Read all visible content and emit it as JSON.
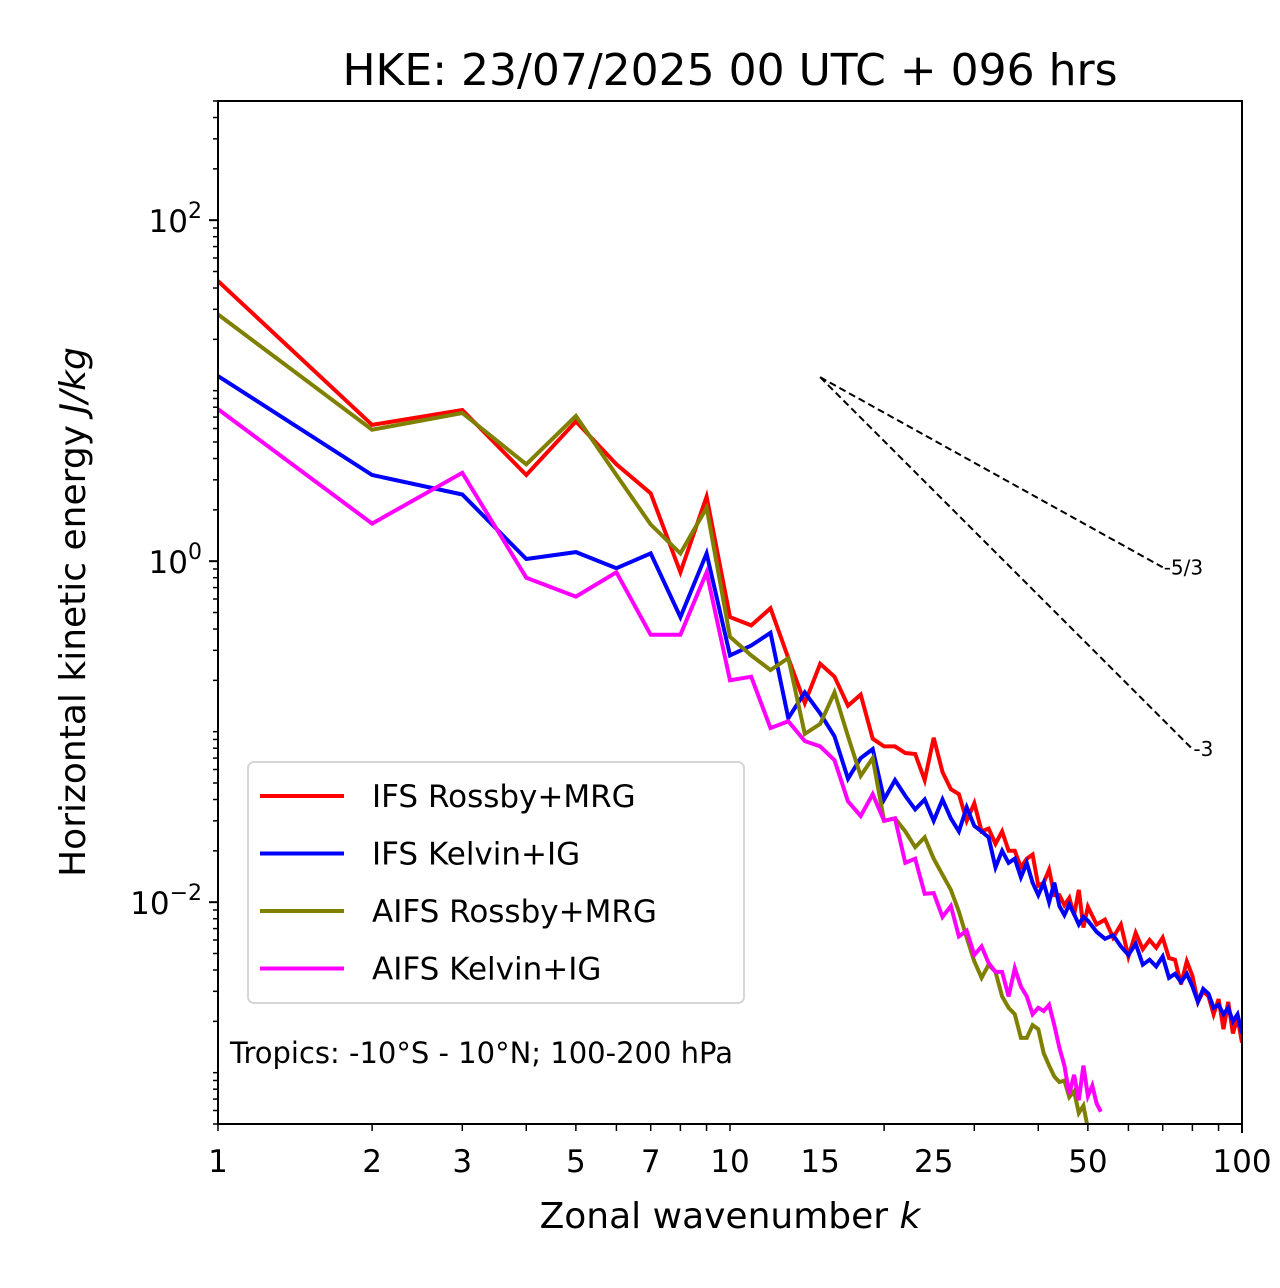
{
  "chart_data": {
    "type": "line",
    "title": "HKE: 23/07/2025 00 UTC + 096 hrs",
    "xlabel": "Zonal wavenumber",
    "xlabel_var": "k",
    "ylabel": "Horizontal kinetic energy",
    "ylabel_units": "J/kg",
    "xscale": "log",
    "yscale": "log",
    "xlim": [
      1,
      100
    ],
    "ylim": [
      0.0005,
      500
    ],
    "x_ticks": [
      1,
      2,
      3,
      5,
      7,
      10,
      15,
      25,
      50,
      100
    ],
    "x_tick_labels": [
      "1",
      "2",
      "3",
      "5",
      "7",
      "10",
      "15",
      "25",
      "50",
      "100"
    ],
    "y_ticks": [
      0.01,
      1,
      100
    ],
    "y_tick_labels": [
      {
        "base": "10",
        "exp": "−2"
      },
      {
        "base": "10",
        "exp": "0"
      },
      {
        "base": "10",
        "exp": "2"
      }
    ],
    "grid": false,
    "legend_position": "lower-left",
    "annotation": "Tropics: -10°S - 10°N; 100-200 hPa",
    "reference_slopes": [
      {
        "label": "-5/3",
        "slope": -1.6667,
        "k_start": 15,
        "k_end": 70,
        "e_start": 12
      },
      {
        "label": "-3",
        "slope": -3,
        "k_start": 15,
        "k_end": 80,
        "e_start": 12
      }
    ],
    "series": [
      {
        "name": "IFS Rossby+MRG",
        "color": "#ff0000",
        "x": [
          1,
          2,
          3,
          4,
          5,
          6,
          7,
          8,
          9,
          10,
          11,
          12,
          13,
          14,
          15,
          16,
          17,
          18,
          19,
          20,
          21,
          22,
          23,
          24,
          25,
          26,
          27,
          28,
          29,
          30,
          31,
          32,
          33,
          34,
          35,
          36,
          37,
          38,
          39,
          40,
          41,
          42,
          43,
          44,
          45,
          46,
          47,
          48,
          49,
          50,
          52,
          54,
          56,
          58,
          60,
          62,
          64,
          66,
          68,
          70,
          72,
          74,
          76,
          78,
          80,
          82,
          84,
          86,
          88,
          90,
          92,
          94,
          96,
          98,
          100
        ],
        "values": [
          44,
          6.3,
          7.7,
          3.2,
          6.6,
          3.7,
          2.5,
          0.86,
          2.39,
          0.47,
          0.42,
          0.53,
          0.27,
          0.147,
          0.25,
          0.21,
          0.142,
          0.165,
          0.091,
          0.082,
          0.082,
          0.075,
          0.074,
          0.052,
          0.092,
          0.058,
          0.046,
          0.043,
          0.03,
          0.038,
          0.026,
          0.027,
          0.022,
          0.026,
          0.02,
          0.02,
          0.016,
          0.018,
          0.019,
          0.0125,
          0.013,
          0.0155,
          0.011,
          0.011,
          0.0096,
          0.0106,
          0.0084,
          0.0118,
          0.0071,
          0.0094,
          0.0074,
          0.0079,
          0.0062,
          0.0074,
          0.0048,
          0.0066,
          0.0053,
          0.006,
          0.0054,
          0.0062,
          0.0047,
          0.0046,
          0.0033,
          0.0045,
          0.0037,
          0.0026,
          0.003,
          0.0028,
          0.0022,
          0.0027,
          0.0018,
          0.0026,
          0.0017,
          0.0021,
          0.0015
        ]
      },
      {
        "name": "IFS Kelvin+IG",
        "color": "#0000ff",
        "x": [
          1,
          2,
          3,
          4,
          5,
          6,
          7,
          8,
          9,
          10,
          11,
          12,
          13,
          14,
          15,
          16,
          17,
          18,
          19,
          20,
          21,
          22,
          23,
          24,
          25,
          26,
          27,
          28,
          29,
          30,
          31,
          32,
          33,
          34,
          35,
          36,
          37,
          38,
          39,
          40,
          41,
          42,
          43,
          44,
          45,
          46,
          47,
          48,
          49,
          50,
          52,
          54,
          56,
          58,
          60,
          62,
          64,
          66,
          68,
          70,
          72,
          74,
          76,
          78,
          80,
          82,
          84,
          86,
          88,
          90,
          92,
          94,
          96,
          98,
          100
        ],
        "values": [
          12.2,
          3.2,
          2.46,
          1.03,
          1.13,
          0.91,
          1.11,
          0.47,
          1.11,
          0.28,
          0.32,
          0.38,
          0.12,
          0.17,
          0.128,
          0.094,
          0.053,
          0.07,
          0.079,
          0.04,
          0.052,
          0.042,
          0.035,
          0.04,
          0.03,
          0.04,
          0.031,
          0.026,
          0.036,
          0.028,
          0.026,
          0.024,
          0.016,
          0.02,
          0.017,
          0.018,
          0.014,
          0.017,
          0.013,
          0.011,
          0.013,
          0.01,
          0.013,
          0.0095,
          0.0084,
          0.0097,
          0.0085,
          0.0074,
          0.0082,
          0.0078,
          0.0067,
          0.0061,
          0.0064,
          0.0055,
          0.0049,
          0.0057,
          0.0043,
          0.0046,
          0.0042,
          0.0048,
          0.0036,
          0.0038,
          0.0034,
          0.0038,
          0.0032,
          0.0026,
          0.0031,
          0.0029,
          0.0024,
          0.0025,
          0.0022,
          0.0024,
          0.002,
          0.0022,
          0.0017
        ]
      },
      {
        "name": "AIFS Rossby+MRG",
        "color": "#808000",
        "x": [
          1,
          2,
          3,
          4,
          5,
          6,
          7,
          8,
          9,
          10,
          11,
          12,
          13,
          14,
          15,
          16,
          17,
          18,
          19,
          20,
          21,
          22,
          23,
          24,
          25,
          26,
          27,
          28,
          29,
          30,
          31,
          32,
          33,
          34,
          35,
          36,
          37,
          38,
          39,
          40,
          41,
          42,
          43,
          44,
          45,
          46,
          47,
          48,
          49,
          50
        ],
        "values": [
          28,
          5.9,
          7.4,
          3.7,
          7.1,
          3.2,
          1.64,
          1.11,
          2.06,
          0.36,
          0.28,
          0.23,
          0.27,
          0.097,
          0.111,
          0.17,
          0.094,
          0.055,
          0.07,
          0.03,
          0.031,
          0.026,
          0.021,
          0.024,
          0.018,
          0.0145,
          0.0118,
          0.0088,
          0.0062,
          0.0045,
          0.0036,
          0.0043,
          0.0039,
          0.0028,
          0.0024,
          0.0022,
          0.0016,
          0.0016,
          0.0019,
          0.0018,
          0.0013,
          0.0011,
          0.00095,
          0.00088,
          0.0009,
          0.00072,
          0.00078,
          0.00058,
          0.00064,
          0.00047
        ]
      },
      {
        "name": "AIFS Kelvin+IG",
        "color": "#ff00ff",
        "x": [
          1,
          2,
          3,
          4,
          5,
          6,
          7,
          8,
          9,
          10,
          11,
          12,
          13,
          14,
          15,
          16,
          17,
          18,
          19,
          20,
          21,
          22,
          23,
          24,
          25,
          26,
          27,
          28,
          29,
          30,
          31,
          32,
          33,
          34,
          35,
          36,
          37,
          38,
          39,
          40,
          41,
          42,
          43,
          44,
          45,
          46,
          47,
          48,
          49,
          50,
          51,
          52,
          53
        ],
        "values": [
          7.8,
          1.66,
          3.3,
          0.8,
          0.62,
          0.86,
          0.37,
          0.37,
          0.86,
          0.2,
          0.21,
          0.105,
          0.115,
          0.088,
          0.082,
          0.068,
          0.039,
          0.032,
          0.043,
          0.03,
          0.031,
          0.017,
          0.018,
          0.0112,
          0.0113,
          0.0082,
          0.0095,
          0.0063,
          0.0068,
          0.0049,
          0.0055,
          0.0044,
          0.0039,
          0.0039,
          0.0028,
          0.0041,
          0.0032,
          0.0028,
          0.0022,
          0.0024,
          0.0023,
          0.0025,
          0.0019,
          0.0014,
          0.0011,
          0.00075,
          0.00097,
          0.00069,
          0.0011,
          0.00073,
          0.00084,
          0.00066,
          0.00059
        ]
      }
    ]
  }
}
